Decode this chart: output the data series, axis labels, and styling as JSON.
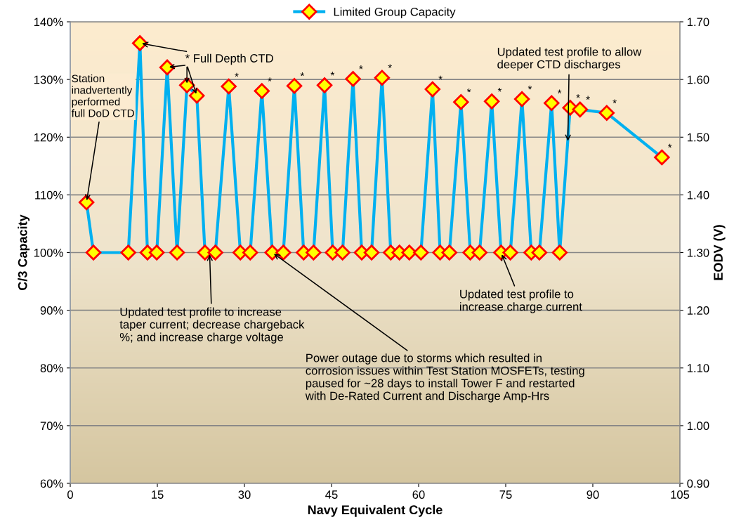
{
  "chart_data": {
    "type": "line",
    "xlabel": "Navy Equivalent Cycle",
    "ylabel": "C/3 Capacity",
    "y2label": "EODV (V)",
    "xlim": [
      0,
      105
    ],
    "xticks": [
      0,
      15,
      30,
      45,
      60,
      75,
      90,
      105
    ],
    "ylim": [
      60,
      140
    ],
    "yticks": [
      {
        "value": 60,
        "label": "60%"
      },
      {
        "value": 70,
        "label": "70%"
      },
      {
        "value": 80,
        "label": "80%"
      },
      {
        "value": 90,
        "label": "90%"
      },
      {
        "value": 100,
        "label": "100%"
      },
      {
        "value": 110,
        "label": "110%"
      },
      {
        "value": 120,
        "label": "120%"
      },
      {
        "value": 130,
        "label": "130%"
      },
      {
        "value": 140,
        "label": "140%"
      }
    ],
    "y2lim": [
      0.9,
      1.7
    ],
    "y2ticks": [
      {
        "value": 0.9,
        "label": "0.90"
      },
      {
        "value": 1.0,
        "label": "1.00"
      },
      {
        "value": 1.1,
        "label": "1.10"
      },
      {
        "value": 1.2,
        "label": "1.20"
      },
      {
        "value": 1.3,
        "label": "1.30"
      },
      {
        "value": 1.4,
        "label": "1.40"
      },
      {
        "value": 1.5,
        "label": "1.50"
      },
      {
        "value": 1.6,
        "label": "1.60"
      },
      {
        "value": 1.7,
        "label": "1.70"
      }
    ],
    "grid": "y",
    "legend": "top",
    "marker": "diamond",
    "line_style": "solid",
    "series": [
      {
        "name": "Limited Group Capacity",
        "color": "#00b0f0",
        "x": [
          2.8,
          4.0,
          10.0,
          12.0,
          13.3,
          14.9,
          16.7,
          18.4,
          20.1,
          21.8,
          23.2,
          25.0,
          27.3,
          29.3,
          31.0,
          33.0,
          34.8,
          36.7,
          38.6,
          40.2,
          41.9,
          43.8,
          45.2,
          46.9,
          48.7,
          50.2,
          51.9,
          53.7,
          55.2,
          56.7,
          58.4,
          60.4,
          62.4,
          63.7,
          65.3,
          67.3,
          68.9,
          70.5,
          72.6,
          74.2,
          75.8,
          77.8,
          79.4,
          80.8,
          82.9,
          84.3,
          86.1,
          87.8,
          92.4,
          101.9
        ],
        "values": [
          108.7,
          100,
          100,
          136.3,
          100,
          100,
          132.1,
          100,
          129.0,
          127.2,
          100,
          100,
          128.8,
          100,
          100,
          128.0,
          100,
          100,
          128.9,
          100,
          100,
          129.0,
          100,
          100,
          130.1,
          100,
          100,
          130.3,
          100,
          100,
          100,
          100,
          128.3,
          100,
          100,
          126.1,
          100,
          100,
          126.2,
          100,
          100,
          126.6,
          100,
          100,
          125.9,
          100,
          125.1,
          124.8,
          124.2,
          116.5
        ]
      }
    ],
    "annotations": [
      {
        "text": "Station\ninadvertently\nperformed\nfull DoD CTD",
        "x": 2.8,
        "y": 108.7
      },
      {
        "text": "* Full Depth CTD",
        "x": 12.0,
        "y": 136.3
      },
      {
        "text": "Updated test profile to increase\ntaper current; decrease chargeback\n%; and increase charge voltage",
        "x": 24.0,
        "y": 100
      },
      {
        "text": "Power outage due to storms which resulted in\ncorrosion issues within Test Station MOSFETs, testing\npaused for ~28 days to install Tower F and restarted\nwith De-Rated Current and Discharge Amp-Hrs",
        "x": 34.8,
        "y": 100
      },
      {
        "text": "Updated test profile to\nincrease charge current",
        "x": 74.2,
        "y": 100
      },
      {
        "text": "Updated test profile to allow\ndeeper CTD discharges",
        "x": 85.7,
        "y": 119
      },
      {
        "text": "*",
        "x": 27.3,
        "y": 128.8
      },
      {
        "text": "*",
        "x": 33.0,
        "y": 128.0
      },
      {
        "text": "*",
        "x": 38.6,
        "y": 128.9
      },
      {
        "text": "*",
        "x": 43.8,
        "y": 129.0
      },
      {
        "text": "*",
        "x": 48.7,
        "y": 130.1
      },
      {
        "text": "*",
        "x": 53.7,
        "y": 130.3
      },
      {
        "text": "*",
        "x": 62.4,
        "y": 128.3
      },
      {
        "text": "*",
        "x": 67.3,
        "y": 126.1
      },
      {
        "text": "*",
        "x": 72.6,
        "y": 126.2
      },
      {
        "text": "*",
        "x": 77.8,
        "y": 126.6
      },
      {
        "text": "*",
        "x": 82.9,
        "y": 125.9
      },
      {
        "text": "*",
        "x": 86.1,
        "y": 125.1
      },
      {
        "text": "*",
        "x": 87.8,
        "y": 124.8
      },
      {
        "text": "*",
        "x": 92.4,
        "y": 124.2
      },
      {
        "text": "*",
        "x": 101.9,
        "y": 116.5
      }
    ]
  }
}
